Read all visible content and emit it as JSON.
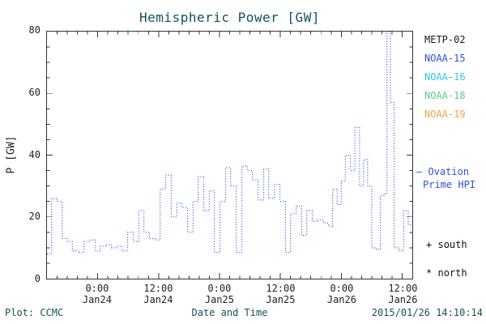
{
  "title": "Hemispheric Power [GW]",
  "footer": {
    "plot_credit": "Plot: CCMC",
    "xlabel": "Date and Time",
    "timestamp": "2015/01/26 14:10:14"
  },
  "legend": {
    "satellites": [
      {
        "label": "METP-02",
        "color": "#1a1a1a"
      },
      {
        "label": "NOAA-15",
        "color": "#2d52d9"
      },
      {
        "label": "NOAA-16",
        "color": "#35c4e8"
      },
      {
        "label": "NOAA-18",
        "color": "#5ecb8a"
      },
      {
        "label": "NOAA-19",
        "color": "#f2a54c"
      }
    ],
    "line_key": {
      "symbol": "—",
      "line1": "Ovation",
      "line2": "Prime HPI",
      "color": "#2d52d9"
    },
    "hemisphere_markers": [
      {
        "symbol": "+",
        "label": "south"
      },
      {
        "symbol": "*",
        "label": "north"
      }
    ]
  },
  "chart_data": {
    "type": "line",
    "style": "dotted step plot",
    "title": "Hemispheric Power [GW]",
    "xlabel": "Date and Time",
    "ylabel": "P [GW]",
    "ylim": [
      0,
      80
    ],
    "yticks": [
      0,
      20,
      40,
      60,
      80
    ],
    "ytick_interval": 20,
    "y_minor": 5,
    "xlim_hours": [
      0,
      72
    ],
    "x_minor_hours": 2,
    "xticks": [
      {
        "hour": 10,
        "time": "0:00",
        "date": "Jan24"
      },
      {
        "hour": 22,
        "time": "12:00",
        "date": "Jan24"
      },
      {
        "hour": 34,
        "time": "0:00",
        "date": "Jan25"
      },
      {
        "hour": 46,
        "time": "12:00",
        "date": "Jan25"
      },
      {
        "hour": 58,
        "time": "0:00",
        "date": "Jan26"
      },
      {
        "hour": 70,
        "time": "12:00",
        "date": "Jan26"
      }
    ],
    "line_color": "#2d52d9",
    "series_name": "Ovation Prime HPI",
    "x_hours": [
      0,
      0.9,
      2,
      3,
      4,
      5,
      6.3,
      7.3,
      8.4,
      9.5,
      10.5,
      11.6,
      12.7,
      13.7,
      14.8,
      15.9,
      17,
      18.1,
      19.1,
      20.2,
      21.3,
      22.3,
      23.4,
      24.5,
      25.6,
      26.6,
      27.7,
      28.8,
      29.8,
      30.9,
      32,
      33,
      34.1,
      35.2,
      36.2,
      37.3,
      38.4,
      39.5,
      40.5,
      41.6,
      42.7,
      43.7,
      44.8,
      45.9,
      47,
      48,
      49.1,
      50.2,
      51.2,
      52.3,
      53.4,
      54.5,
      55.5,
      56.3,
      57.2,
      58,
      58.8,
      59.8,
      60.7,
      61.6,
      62.4,
      63.2,
      64,
      64.9,
      65.7,
      66.4,
      67,
      67.7,
      68.4,
      69.4,
      70.3,
      71.2
    ],
    "values": [
      8,
      26,
      25,
      13,
      12,
      9,
      8.5,
      12,
      12.5,
      9,
      10.5,
      11,
      10,
      10.5,
      9,
      15,
      12,
      22,
      15,
      13,
      12.5,
      29,
      33.5,
      20,
      24.5,
      23,
      15,
      25,
      33,
      22,
      28.5,
      8.5,
      25,
      36,
      30,
      8.5,
      36.5,
      35,
      32,
      25.5,
      35.5,
      26,
      30.5,
      25,
      8.5,
      21,
      23.5,
      14,
      22,
      18.5,
      19,
      18,
      17,
      29,
      24,
      31.5,
      40,
      35,
      49,
      30,
      38.5,
      30,
      10,
      9.5,
      27,
      27.5,
      80,
      57,
      10,
      9,
      22,
      17.5
    ]
  }
}
